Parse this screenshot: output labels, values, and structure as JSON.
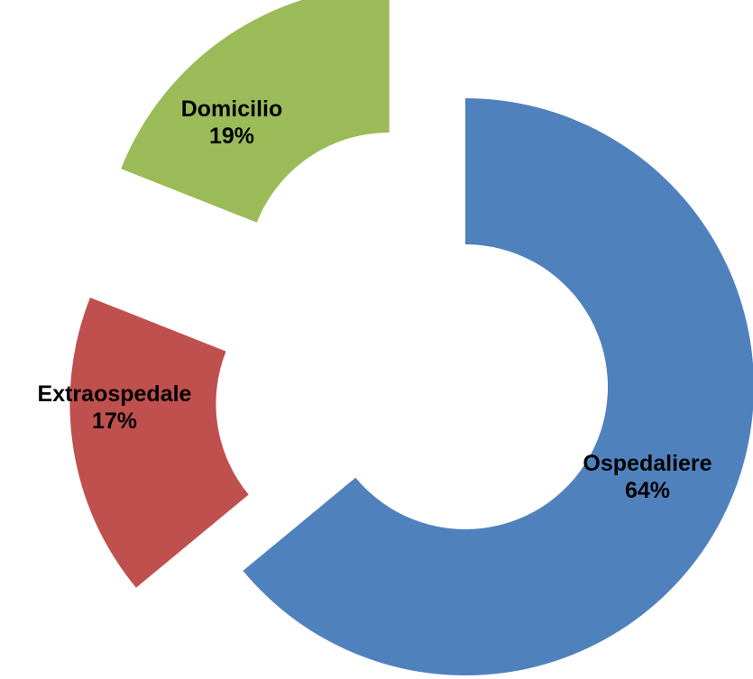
{
  "chart_data": {
    "type": "pie",
    "variant": "exploded-doughnut",
    "title": "",
    "slices": [
      {
        "name": "Ospedaliere",
        "value": 64,
        "label": "64%",
        "color": "#4F81BD"
      },
      {
        "name": "Extraospedale",
        "value": 17,
        "label": "17%",
        "color": "#C0504D"
      },
      {
        "name": "Domicilio",
        "value": 19,
        "label": "19%",
        "color": "#9BBB59"
      }
    ],
    "start": "12 o'clock",
    "direction": "clockwise",
    "legend": "none"
  }
}
